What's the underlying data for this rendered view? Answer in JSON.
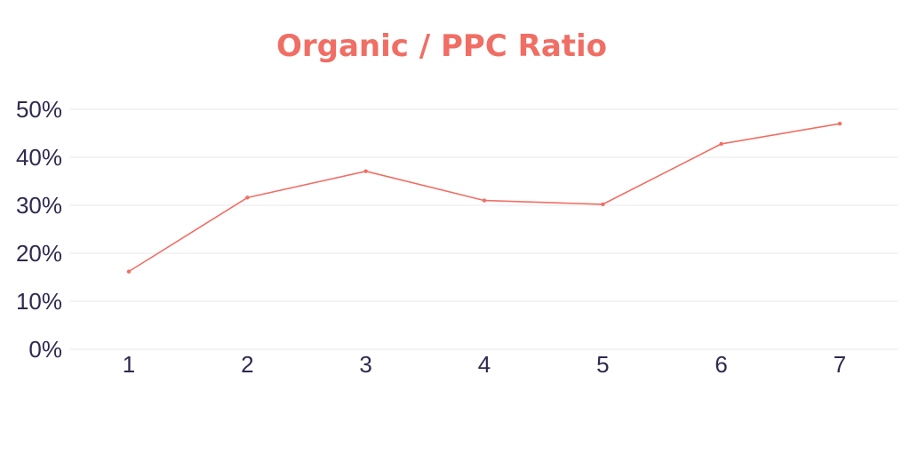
{
  "chart_data": {
    "type": "line",
    "title": "Organic / PPC Ratio",
    "xlabel": "",
    "ylabel": "",
    "categories": [
      "1",
      "2",
      "3",
      "4",
      "5",
      "6",
      "7"
    ],
    "series": [
      {
        "values": [
          16.2,
          31.6,
          37.1,
          31.0,
          30.2,
          42.8,
          47.0
        ]
      }
    ],
    "ylim": [
      0,
      50
    ],
    "y_ticks": [
      0,
      10,
      20,
      30,
      40,
      50
    ],
    "y_tick_labels": [
      "0%",
      "10%",
      "20%",
      "30%",
      "40%",
      "50%"
    ],
    "grid": true,
    "legend": "none",
    "colors": {
      "title": "#f06e64",
      "line": "#f06e64",
      "tick_text": "#2f2a4f",
      "grid": "#e8e8e8"
    }
  }
}
